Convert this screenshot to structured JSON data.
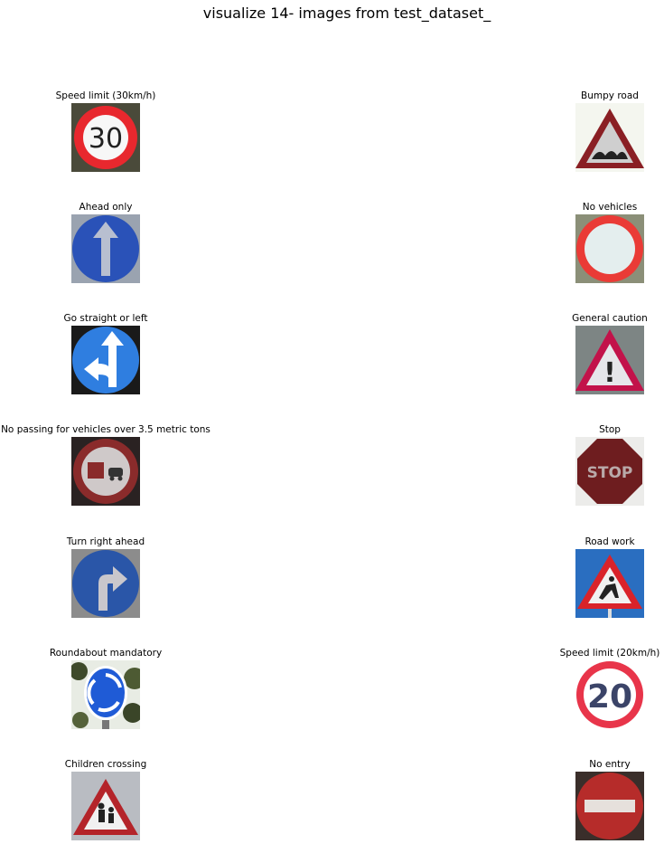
{
  "figure_title": "visualize 14- images from test_dataset_",
  "left_column": [
    {
      "label": "Speed limit (30km/h)",
      "sign_text": "30"
    },
    {
      "label": "Ahead only"
    },
    {
      "label": "Go straight or left"
    },
    {
      "label": "No passing for vehicles over 3.5 metric tons"
    },
    {
      "label": "Turn right ahead"
    },
    {
      "label": "Roundabout mandatory"
    },
    {
      "label": "Children crossing"
    }
  ],
  "right_column": [
    {
      "label": "Bumpy road"
    },
    {
      "label": "No vehicles"
    },
    {
      "label": "General caution",
      "sign_text": "!"
    },
    {
      "label": "Stop",
      "sign_text": "STOP"
    },
    {
      "label": "Road work"
    },
    {
      "label": "Speed limit (20km/h)",
      "sign_text": "20"
    },
    {
      "label": "No entry"
    }
  ]
}
